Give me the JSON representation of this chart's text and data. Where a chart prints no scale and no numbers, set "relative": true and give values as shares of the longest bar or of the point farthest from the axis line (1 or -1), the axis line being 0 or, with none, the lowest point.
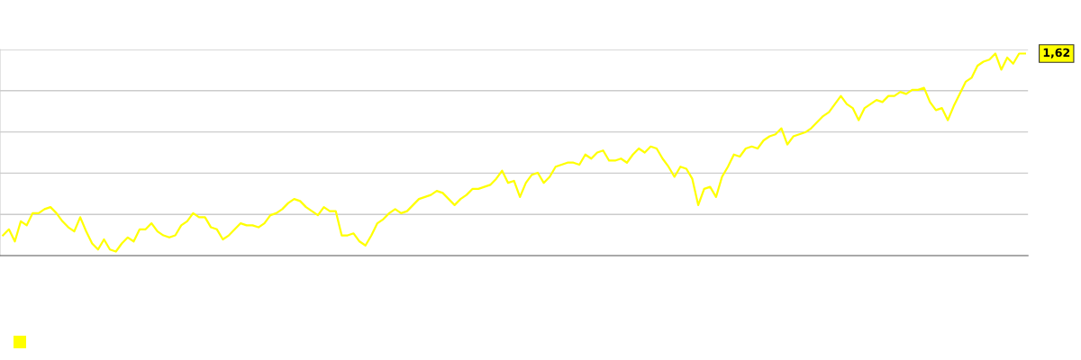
{
  "chart_data": {
    "type": "line",
    "relative": true,
    "grid": "y",
    "marker": "none",
    "line_style": "solid",
    "categories": [
      null,
      null,
      null,
      null,
      null,
      null,
      null,
      null,
      null,
      null,
      null,
      null,
      null,
      null,
      null,
      null,
      null,
      null,
      null,
      null,
      null,
      null,
      null,
      null,
      null,
      null,
      null,
      null,
      null,
      null,
      null,
      null,
      null,
      null,
      null,
      null,
      null,
      null,
      null,
      null,
      null,
      null,
      null,
      null,
      null,
      null,
      null,
      null,
      null,
      null,
      null,
      null,
      null,
      null,
      null,
      null,
      null,
      null,
      null,
      null,
      null,
      null,
      null,
      null,
      null,
      null,
      null,
      null,
      null,
      null,
      null,
      null,
      null,
      null,
      null,
      null,
      null,
      null,
      null,
      null,
      null,
      null,
      null,
      null,
      null,
      null,
      null,
      null,
      null,
      null,
      null,
      null,
      null,
      null,
      null,
      null,
      null,
      null,
      null,
      null,
      null,
      null,
      null,
      null,
      null,
      null,
      null,
      null,
      null,
      null,
      null,
      null,
      null,
      null,
      null,
      null,
      null,
      null,
      null,
      null,
      null,
      null,
      null,
      null,
      null,
      null,
      null,
      null,
      null,
      null,
      null,
      null,
      null,
      null,
      null,
      null,
      null,
      null,
      null,
      null,
      null,
      null,
      null,
      null,
      null,
      null,
      null,
      null,
      null,
      null,
      null,
      null,
      null,
      null,
      null,
      null,
      null,
      null,
      null,
      null,
      null,
      null,
      null,
      null,
      null,
      null,
      null,
      null,
      null,
      null,
      null,
      null,
      null
    ],
    "series": [
      {
        "color": "#ffff00",
        "values": [
          0.1,
          0.13,
          0.07,
          0.17,
          0.15,
          0.21,
          0.21,
          0.23,
          0.24,
          0.21,
          0.17,
          0.14,
          0.12,
          0.19,
          0.12,
          0.06,
          0.03,
          0.08,
          0.03,
          0.02,
          0.06,
          0.09,
          0.07,
          0.13,
          0.13,
          0.16,
          0.12,
          0.1,
          0.09,
          0.1,
          0.15,
          0.17,
          0.21,
          0.19,
          0.19,
          0.14,
          0.13,
          0.08,
          0.1,
          0.13,
          0.16,
          0.15,
          0.15,
          0.14,
          0.16,
          0.2,
          0.21,
          0.23,
          0.26,
          0.28,
          0.27,
          0.24,
          0.22,
          0.2,
          0.24,
          0.22,
          0.22,
          0.1,
          0.1,
          0.11,
          0.07,
          0.05,
          0.1,
          0.16,
          0.18,
          0.21,
          0.23,
          0.21,
          0.22,
          0.25,
          0.28,
          0.29,
          0.3,
          0.32,
          0.31,
          0.28,
          0.25,
          0.28,
          0.3,
          0.33,
          0.33,
          0.34,
          0.35,
          0.38,
          0.42,
          0.36,
          0.37,
          0.29,
          0.36,
          0.4,
          0.41,
          0.36,
          0.39,
          0.44,
          0.45,
          0.46,
          0.46,
          0.45,
          0.5,
          0.48,
          0.51,
          0.52,
          0.47,
          0.47,
          0.48,
          0.46,
          0.5,
          0.53,
          0.51,
          0.54,
          0.53,
          0.48,
          0.44,
          0.39,
          0.44,
          0.43,
          0.38,
          0.25,
          0.33,
          0.34,
          0.29,
          0.39,
          0.44,
          0.5,
          0.49,
          0.53,
          0.54,
          0.53,
          0.57,
          0.59,
          0.6,
          0.63,
          0.55,
          0.59,
          0.6,
          0.61,
          0.63,
          0.66,
          0.69,
          0.71,
          0.75,
          0.79,
          0.75,
          0.73,
          0.67,
          0.73,
          0.75,
          0.77,
          0.76,
          0.79,
          0.79,
          0.81,
          0.8,
          0.82,
          0.82,
          0.83,
          0.76,
          0.72,
          0.73,
          0.67,
          0.74,
          0.8,
          0.86,
          0.88,
          0.94,
          0.96,
          0.97,
          1.0,
          0.92,
          0.98,
          0.95,
          1.0,
          1.0
        ]
      }
    ],
    "annotations": [
      "1,62"
    ]
  }
}
